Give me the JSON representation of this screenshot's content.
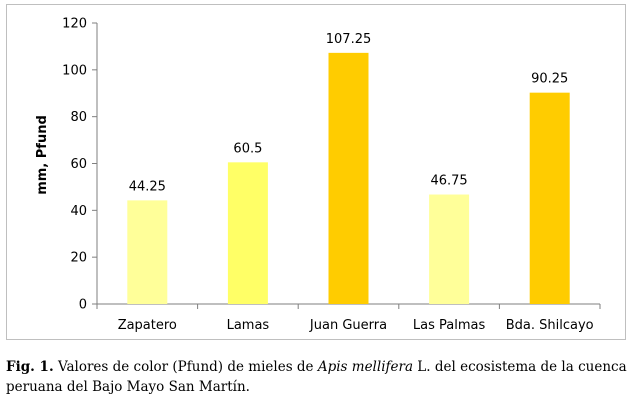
{
  "chart_data": {
    "type": "bar",
    "categories": [
      "Zapatero",
      "Lamas",
      "Juan Guerra",
      "Las Palmas",
      "Bda. Shilcayo"
    ],
    "values": [
      44.25,
      60.5,
      107.25,
      46.75,
      90.25
    ],
    "data_labels": [
      "44.25",
      "60.5",
      "107.25",
      "46.75",
      "90.25"
    ],
    "bar_colors": [
      "#ffff99",
      "#ffff66",
      "#ffcc00",
      "#ffff99",
      "#ffcc00"
    ],
    "ylabel": "mm, Pfund",
    "xlabel": "",
    "ylim": [
      0,
      120
    ],
    "yticks": [
      "0",
      "20",
      "40",
      "60",
      "80",
      "100",
      "120"
    ],
    "grid": false
  },
  "caption": {
    "fig_label": "Fig. 1.",
    "text_before": " Valores de color (Pfund) de mieles de ",
    "species": "Apis mellifera",
    "text_after": " L. del ecosistema de la cuenca peruana del Bajo Mayo San Martín."
  }
}
